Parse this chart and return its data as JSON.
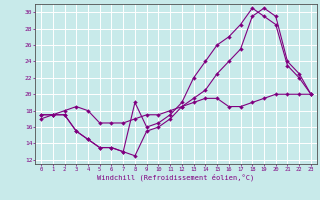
{
  "xlabel": "Windchill (Refroidissement éolien,°C)",
  "bg_color": "#c8eaea",
  "grid_color": "#ffffff",
  "line_color": "#800080",
  "xlim_min": -0.5,
  "xlim_max": 23.5,
  "ylim_min": 11.5,
  "ylim_max": 31.0,
  "yticks": [
    12,
    14,
    16,
    18,
    20,
    22,
    24,
    26,
    28,
    30
  ],
  "xticks": [
    0,
    1,
    2,
    3,
    4,
    5,
    6,
    7,
    8,
    9,
    10,
    11,
    12,
    13,
    14,
    15,
    16,
    17,
    18,
    19,
    20,
    21,
    22,
    23
  ],
  "line1_x": [
    0,
    1,
    2,
    3,
    4,
    5,
    6,
    7,
    8,
    9,
    10,
    11,
    12,
    13,
    14,
    15,
    16,
    17,
    18,
    19,
    20,
    21,
    22,
    23
  ],
  "line1_y": [
    17.5,
    17.5,
    17.5,
    15.5,
    14.5,
    13.5,
    13.5,
    13.0,
    12.5,
    15.5,
    16.0,
    17.0,
    18.5,
    19.5,
    20.5,
    22.5,
    24.0,
    25.5,
    29.5,
    30.5,
    29.5,
    24.0,
    22.5,
    20.0
  ],
  "line2_x": [
    0,
    1,
    2,
    3,
    4,
    5,
    6,
    7,
    8,
    9,
    10,
    11,
    12,
    13,
    14,
    15,
    16,
    17,
    18,
    19,
    20,
    21,
    22,
    23
  ],
  "line2_y": [
    17.5,
    17.5,
    17.5,
    15.5,
    14.5,
    13.5,
    13.5,
    13.0,
    19.0,
    16.0,
    16.5,
    17.5,
    19.0,
    22.0,
    24.0,
    26.0,
    27.0,
    28.5,
    30.5,
    29.5,
    28.5,
    23.5,
    22.0,
    20.0
  ],
  "line3_x": [
    0,
    1,
    2,
    3,
    4,
    5,
    6,
    7,
    8,
    9,
    10,
    11,
    12,
    13,
    14,
    15,
    16,
    17,
    18,
    19,
    20,
    21,
    22,
    23
  ],
  "line3_y": [
    17.0,
    17.5,
    18.0,
    18.5,
    18.0,
    16.5,
    16.5,
    16.5,
    17.0,
    17.5,
    17.5,
    18.0,
    18.5,
    19.0,
    19.5,
    19.5,
    18.5,
    18.5,
    19.0,
    19.5,
    20.0,
    20.0,
    20.0,
    20.0
  ]
}
